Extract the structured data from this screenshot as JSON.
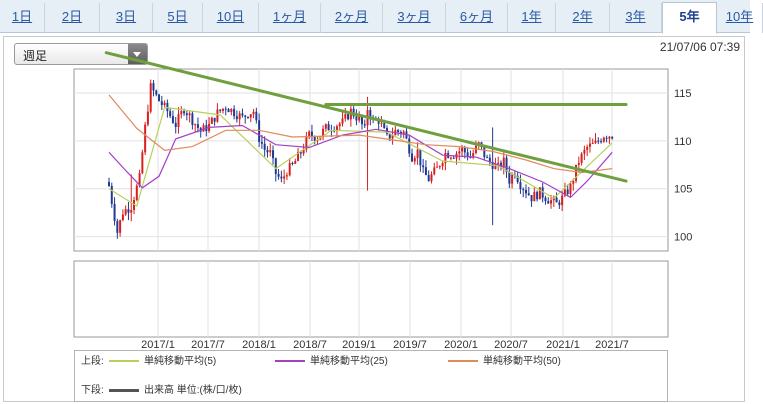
{
  "tabs": [
    {
      "label": "1日"
    },
    {
      "label": "2日"
    },
    {
      "label": "3日"
    },
    {
      "label": "5日"
    },
    {
      "label": "10日"
    },
    {
      "label": "1ヶ月"
    },
    {
      "label": "2ヶ月"
    },
    {
      "label": "3ヶ月"
    },
    {
      "label": "6ヶ月"
    },
    {
      "label": "1年"
    },
    {
      "label": "2年"
    },
    {
      "label": "3年"
    },
    {
      "label": "5年",
      "active": true
    },
    {
      "label": "10年"
    }
  ],
  "period_select": {
    "value": "週足"
  },
  "timestamp": "21/07/06 07:39",
  "chart_data": {
    "type": "candlestick",
    "x_tick_labels": [
      "2017/1",
      "2017/7",
      "2018/1",
      "2018/7",
      "2019/1",
      "2019/7",
      "2020/1",
      "2020/7",
      "2021/1",
      "2021/7"
    ],
    "y_tick_labels": [
      "100",
      "105",
      "110",
      "115"
    ],
    "ylim": [
      98.5,
      117.5
    ],
    "grid": true,
    "close_path": [
      [
        0,
        105.3
      ],
      [
        3,
        100.5
      ],
      [
        5,
        102.6
      ],
      [
        8,
        103.2
      ],
      [
        11,
        106.1
      ],
      [
        13,
        111.4
      ],
      [
        15,
        115.6
      ],
      [
        18,
        114.2
      ],
      [
        21,
        113.1
      ],
      [
        24,
        111.7
      ],
      [
        27,
        113.4
      ],
      [
        30,
        112.2
      ],
      [
        33,
        111.0
      ],
      [
        36,
        111.6
      ],
      [
        39,
        112.9
      ],
      [
        42,
        113.6
      ],
      [
        45,
        113.0
      ],
      [
        48,
        112.4
      ],
      [
        50,
        112.9
      ],
      [
        52,
        113.1
      ],
      [
        54,
        110.3
      ],
      [
        56,
        109.1
      ],
      [
        58,
        108.7
      ],
      [
        60,
        106.6
      ],
      [
        62,
        105.8
      ],
      [
        64,
        106.9
      ],
      [
        66,
        107.4
      ],
      [
        69,
        108.8
      ],
      [
        72,
        110.6
      ],
      [
        75,
        110.4
      ],
      [
        78,
        111.3
      ],
      [
        81,
        111.6
      ],
      [
        84,
        111.9
      ],
      [
        87,
        113.1
      ],
      [
        90,
        112.2
      ],
      [
        92,
        111.1
      ],
      [
        93,
        113.4
      ],
      [
        95,
        112.0
      ],
      [
        97,
        112.2
      ],
      [
        100,
        110.3
      ],
      [
        103,
        111.0
      ],
      [
        106,
        110.9
      ],
      [
        109,
        108.4
      ],
      [
        111,
        108.9
      ],
      [
        113,
        106.7
      ],
      [
        115,
        106.0
      ],
      [
        118,
        107.1
      ],
      [
        121,
        108.7
      ],
      [
        124,
        108.6
      ],
      [
        127,
        109.1
      ],
      [
        130,
        108.3
      ],
      [
        133,
        109.6
      ],
      [
        136,
        108.0
      ],
      [
        138,
        107.6
      ],
      [
        140,
        107.2
      ],
      [
        142,
        107.8
      ],
      [
        144,
        105.9
      ],
      [
        146,
        106.8
      ],
      [
        148,
        105.5
      ],
      [
        150,
        104.8
      ],
      [
        152,
        104.1
      ],
      [
        155,
        104.6
      ],
      [
        158,
        103.9
      ],
      [
        161,
        103.4
      ],
      [
        163,
        104.0
      ],
      [
        166,
        105.2
      ],
      [
        169,
        107.9
      ],
      [
        172,
        109.3
      ],
      [
        175,
        109.7
      ],
      [
        178,
        110.6
      ],
      [
        181,
        110.6
      ]
    ],
    "spikes": [
      {
        "week": 8,
        "high": 106.5,
        "low": 101.6
      },
      {
        "week": 93,
        "high": 114.6,
        "low": 104.8
      },
      {
        "week": 138,
        "high": 111.4,
        "low": 101.2
      }
    ],
    "moving_averages": [
      {
        "name": "単純移動平均(5)",
        "color": "#b5d15a",
        "points": [
          [
            0,
            105
          ],
          [
            10,
            103.2
          ],
          [
            20,
            113.5
          ],
          [
            40,
            112.7
          ],
          [
            60,
            107.1
          ],
          [
            80,
            111.1
          ],
          [
            100,
            110.9
          ],
          [
            120,
            107.9
          ],
          [
            140,
            107.4
          ],
          [
            160,
            104.0
          ],
          [
            181,
            109.8
          ]
        ]
      },
      {
        "name": "単純移動平均(25)",
        "color": "#a43fc6",
        "points": [
          [
            0,
            108.8
          ],
          [
            6,
            106.9
          ],
          [
            12,
            105.1
          ],
          [
            18,
            106.3
          ],
          [
            24,
            110.2
          ],
          [
            36,
            111.4
          ],
          [
            48,
            111.6
          ],
          [
            60,
            109.6
          ],
          [
            72,
            109.3
          ],
          [
            84,
            110.6
          ],
          [
            96,
            111.2
          ],
          [
            108,
            110.6
          ],
          [
            120,
            108.5
          ],
          [
            132,
            108.3
          ],
          [
            144,
            107.1
          ],
          [
            156,
            105.7
          ],
          [
            166,
            104.1
          ],
          [
            172,
            105.8
          ],
          [
            181,
            108.8
          ]
        ]
      },
      {
        "name": "単純移動平均(50)",
        "color": "#e08a5c",
        "points": [
          [
            0,
            114.8
          ],
          [
            10,
            111.3
          ],
          [
            20,
            109.0
          ],
          [
            30,
            109.4
          ],
          [
            42,
            111.1
          ],
          [
            54,
            111.1
          ],
          [
            66,
            110.4
          ],
          [
            78,
            110.5
          ],
          [
            90,
            110.6
          ],
          [
            102,
            110.1
          ],
          [
            114,
            109.6
          ],
          [
            126,
            109.4
          ],
          [
            138,
            108.9
          ],
          [
            150,
            108.0
          ],
          [
            160,
            107.1
          ],
          [
            170,
            106.7
          ],
          [
            181,
            107.1
          ]
        ]
      }
    ],
    "trendlines": [
      {
        "from": [
          -1,
          119.2
        ],
        "to": [
          186,
          105.8
        ],
        "color": "#6f9f3f"
      },
      {
        "from": [
          78,
          113.8
        ],
        "to": [
          186,
          113.8
        ],
        "color": "#6f9f3f"
      }
    ]
  },
  "legend": {
    "upper_label": "上段:",
    "lower_label": "下段:",
    "series": [
      {
        "name": "単純移動平均(5)",
        "color": "#b5d15a"
      },
      {
        "name": "単純移動平均(25)",
        "color": "#a43fc6"
      },
      {
        "name": "単純移動平均(50)",
        "color": "#e08a5c"
      }
    ],
    "volume": {
      "name": "出来高 単位:(株/口/枚)",
      "color": "#555555"
    }
  }
}
